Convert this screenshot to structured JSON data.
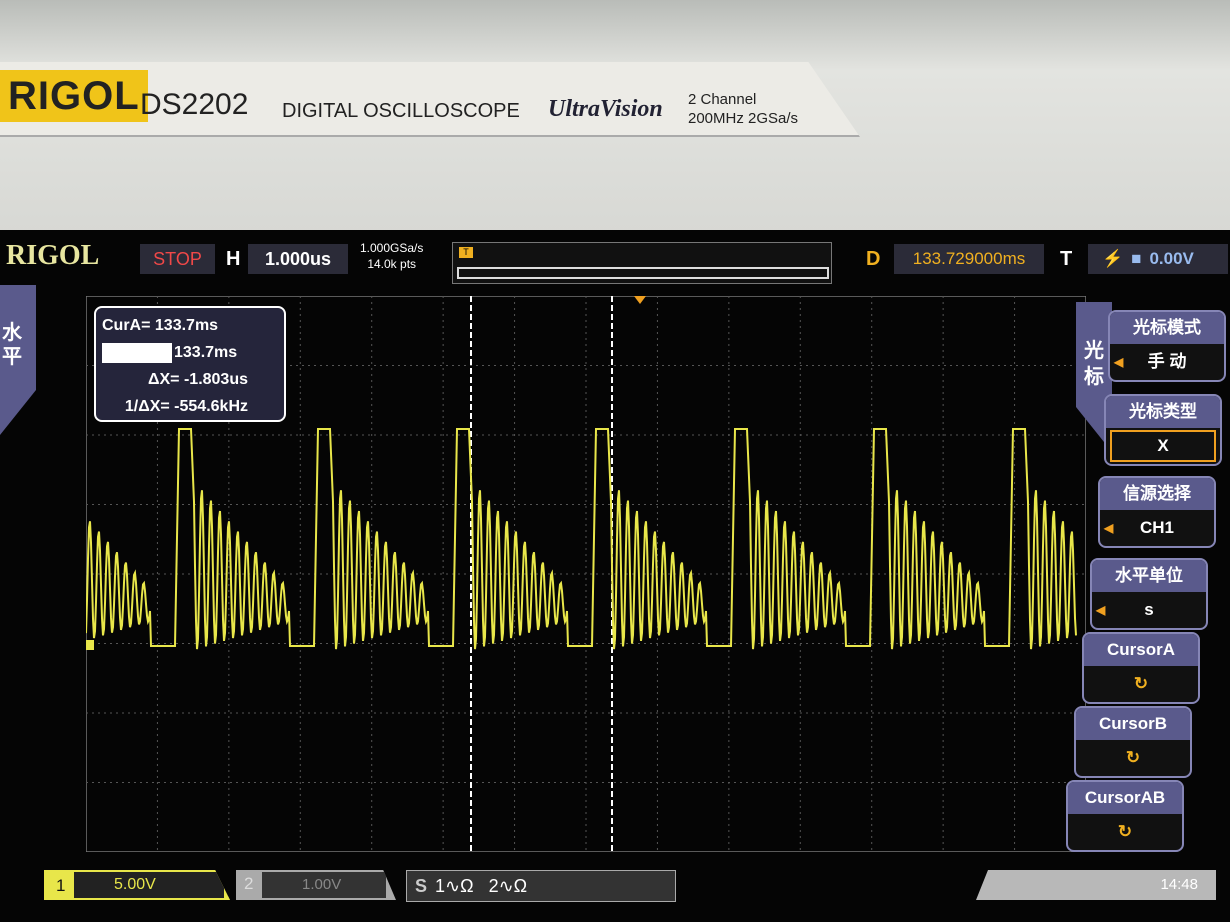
{
  "bezel": {
    "brand": "RIGOL",
    "model": "DS2202",
    "description": "DIGITAL OSCILLOSCOPE",
    "series_logo": "UltraVision",
    "channels": "2 Channel",
    "spec": "200MHz  2GSa/s"
  },
  "status_bar": {
    "logo": "RIGOL",
    "run_state": "STOP",
    "h_label": "H",
    "timebase": "1.000us",
    "sample_rate": "1.000GSa/s",
    "memory_depth": "14.0k pts",
    "trigger_marker": "T",
    "delay_label": "D",
    "delay": "133.729000ms",
    "trigger_label": "T",
    "trigger_level": "0.00V",
    "run_state_color": "#f04848",
    "delay_color": "#f0b020"
  },
  "left_menu": {
    "label": "水平"
  },
  "cursor_readout": {
    "cur_a": "CurA= 133.7ms",
    "cur_b": "133.7ms",
    "delta_x": "ΔX= -1.803us",
    "inv_delta_x": "1/ΔX= -554.6kHz"
  },
  "right_menu": {
    "tab": "光标",
    "items": [
      {
        "title": "光标模式",
        "value": "手 动"
      },
      {
        "title": "光标类型",
        "value": "X"
      },
      {
        "title": "信源选择",
        "value": "CH1"
      },
      {
        "title": "水平单位",
        "value": "s"
      },
      {
        "title": "CursorA",
        "value": "↻"
      },
      {
        "title": "CursorB",
        "value": "↻"
      },
      {
        "title": "CursorAB",
        "value": "↻"
      }
    ]
  },
  "bottom_bar": {
    "ch1_num": "1",
    "ch1_scale": "5.00V",
    "ch1_color": "#e8e64a",
    "ch2_num": "2",
    "ch2_scale": "1.00V",
    "source_label": "S",
    "src1": "1∿Ω",
    "src2": "2∿Ω",
    "time": "14:48"
  },
  "waveform": {
    "channel": "CH1",
    "color": "#e8e64a",
    "grid_divisions": {
      "horizontal": 14,
      "vertical": 8
    }
  }
}
